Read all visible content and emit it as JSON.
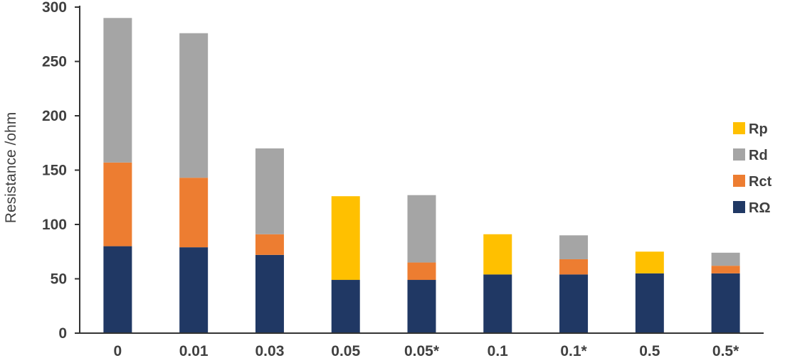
{
  "chart_data": {
    "type": "bar",
    "stacked": true,
    "categories": [
      "0",
      "0.01",
      "0.03",
      "0.05",
      "0.05*",
      "0.1",
      "0.1*",
      "0.5",
      "0.5*"
    ],
    "series": [
      {
        "name": "RΩ",
        "color": "#203864",
        "values": [
          80,
          79,
          72,
          49,
          49,
          54,
          54,
          55,
          55
        ]
      },
      {
        "name": "Rct",
        "color": "#ED7D31",
        "values": [
          77,
          64,
          19,
          0,
          16,
          0,
          14,
          0,
          7
        ]
      },
      {
        "name": "Rd",
        "color": "#A5A5A5",
        "values": [
          133,
          133,
          79,
          0,
          62,
          0,
          22,
          0,
          12
        ]
      },
      {
        "name": "Rp",
        "color": "#FFC000",
        "values": [
          0,
          0,
          0,
          77,
          0,
          37,
          0,
          20,
          0
        ]
      }
    ],
    "title": "",
    "xlabel": "",
    "ylabel": "Resistance /ohm",
    "ylim": [
      0,
      300
    ],
    "yticks": [
      "0",
      "50",
      "100",
      "150",
      "200",
      "250",
      "300"
    ],
    "legend": {
      "placement": "right",
      "order": [
        "Rp",
        "Rd",
        "Rct",
        "RΩ"
      ]
    },
    "grid": false
  }
}
